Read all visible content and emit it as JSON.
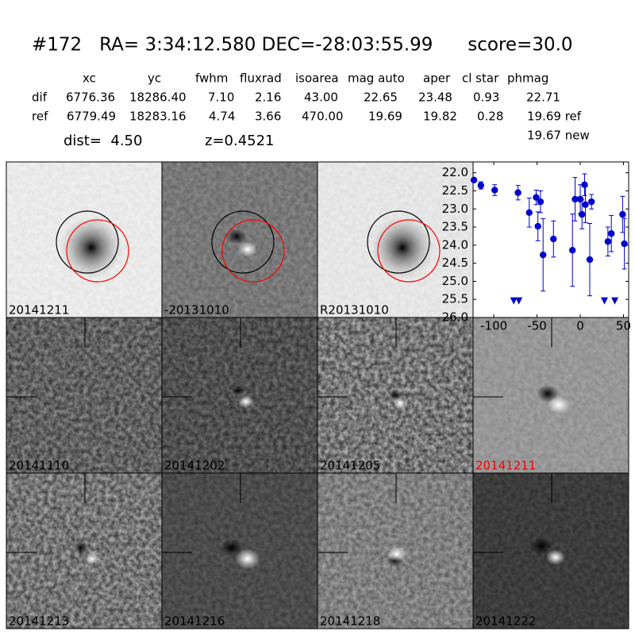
{
  "header": {
    "title": "#172   RA= 3:34:12.580 DEC=-28:03:55.99      score=30.0"
  },
  "table": {
    "columns": [
      "xc",
      "yc",
      "fwhm",
      "fluxrad",
      "isoarea",
      "mag auto",
      "aper",
      "cl star",
      "phmag"
    ],
    "rows": [
      {
        "label": "dif",
        "cells": [
          "6776.36",
          "18286.40",
          "7.10",
          "2.16",
          "43.00",
          "22.65",
          "23.48",
          "0.93",
          "22.71"
        ]
      },
      {
        "label": "ref",
        "cells": [
          "6779.49",
          "18283.16",
          "4.74",
          "3.66",
          "470.00",
          "19.69",
          "19.82",
          "0.28",
          "19.69 ref"
        ]
      }
    ],
    "new_phmag": "19.67 new"
  },
  "dist": "dist=  4.50",
  "z": "z=0.4521",
  "panels": [
    {
      "label": "20141211",
      "color": "#000000"
    },
    {
      "label": "-20131010",
      "color": "#000000"
    },
    {
      "label": "R20131010",
      "color": "#000000"
    },
    {
      "label": "20141110",
      "color": "#000000"
    },
    {
      "label": "20141202",
      "color": "#000000"
    },
    {
      "label": "20141205",
      "color": "#000000"
    },
    {
      "label": "20141211",
      "color": "#ff0000"
    },
    {
      "label": "20141213",
      "color": "#000000"
    },
    {
      "label": "20141216",
      "color": "#000000"
    },
    {
      "label": "20141218",
      "color": "#000000"
    },
    {
      "label": "20141222",
      "color": "#000000"
    }
  ],
  "light_curve": {
    "type": "scatter",
    "color": "#0000cc",
    "xlim": [
      -124,
      56
    ],
    "ylim": [
      21.7,
      26
    ],
    "y_inverted": true,
    "xticks": [
      -100,
      -50,
      0,
      50
    ],
    "yticks": [
      {
        "value": 22,
        "label": "22.0"
      },
      22.5,
      {
        "value": 23,
        "label": "23.0"
      },
      23.5,
      {
        "value": 24,
        "label": "24.0"
      },
      24.5,
      {
        "value": 25,
        "label": "25.0"
      },
      25.5,
      {
        "value": 26,
        "label": "26.0"
      }
    ],
    "x": [
      -123,
      -115,
      -99,
      -72,
      -59,
      -51,
      -49,
      -46,
      -43,
      -31,
      -9,
      -6,
      0,
      2,
      5,
      6,
      11,
      13,
      32,
      36,
      49,
      51
    ],
    "values": [
      22.2,
      22.35,
      22.48,
      22.55,
      23.1,
      22.68,
      23.48,
      22.8,
      24.27,
      23.83,
      24.14,
      22.73,
      22.73,
      23.15,
      22.33,
      22.88,
      24.4,
      22.8,
      23.9,
      23.68,
      23.15,
      23.96
    ],
    "errors": [
      0.05,
      0.1,
      0.15,
      0.2,
      0.4,
      0.2,
      0.4,
      0.3,
      1.0,
      0.5,
      1.0,
      0.6,
      0.4,
      0.4,
      0.3,
      0.5,
      1.0,
      0.2,
      0.4,
      0.5,
      0.5,
      0.7
    ],
    "limits": {
      "x": [
        -77,
        -71,
        28,
        40
      ],
      "values": [
        25.53,
        25.53,
        25.53,
        25.53
      ]
    }
  }
}
